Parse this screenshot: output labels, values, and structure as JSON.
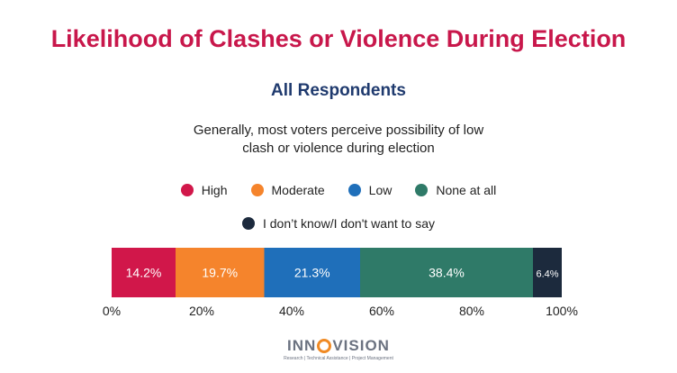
{
  "colors": {
    "title": "#c8174b",
    "subtitle": "#1f3a6e",
    "high": "#d1174a",
    "moderate": "#f5842c",
    "low": "#1f6fba",
    "none_at_all": "#2f7a68",
    "dont_know": "#1c2a3d"
  },
  "title": "Likelihood of Clashes or Violence During Election",
  "subtitle": "All Respondents",
  "description": {
    "line1": "Generally, most voters perceive possibility of low",
    "line2": "clash or violence during election"
  },
  "legend": [
    {
      "label": "High",
      "color": "#d1174a"
    },
    {
      "label": "Moderate",
      "color": "#f5842c"
    },
    {
      "label": "Low",
      "color": "#1f6fba"
    },
    {
      "label": "None at all",
      "color": "#2f7a68"
    },
    {
      "label": "I don’t know/I don't want to say",
      "color": "#1c2a3d"
    }
  ],
  "chart_data": {
    "type": "bar",
    "orientation": "horizontal-stacked-100",
    "categories": [
      "All Respondents"
    ],
    "series": [
      {
        "name": "High",
        "values": [
          14.2
        ],
        "label": "14.2%",
        "color": "#d1174a"
      },
      {
        "name": "Moderate",
        "values": [
          19.7
        ],
        "label": "19.7%",
        "color": "#f5842c"
      },
      {
        "name": "Low",
        "values": [
          21.3
        ],
        "label": "21.3%",
        "color": "#1f6fba"
      },
      {
        "name": "None at all",
        "values": [
          38.4
        ],
        "label": "38.4%",
        "color": "#2f7a68"
      },
      {
        "name": "I don’t know/I don't want to say",
        "values": [
          6.4
        ],
        "label": "6.4%",
        "color": "#1c2a3d"
      }
    ],
    "xlim": [
      0,
      100
    ],
    "xticks": [
      0,
      20,
      40,
      60,
      80,
      100
    ],
    "xtick_labels": [
      "0%",
      "20%",
      "40%",
      "60%",
      "80%",
      "100%"
    ],
    "grid": false,
    "legend_position": "top"
  },
  "logo": {
    "name_before": "INN",
    "name_after": "VISION",
    "tagline": "Research | Technical Assistance | Project Management"
  }
}
